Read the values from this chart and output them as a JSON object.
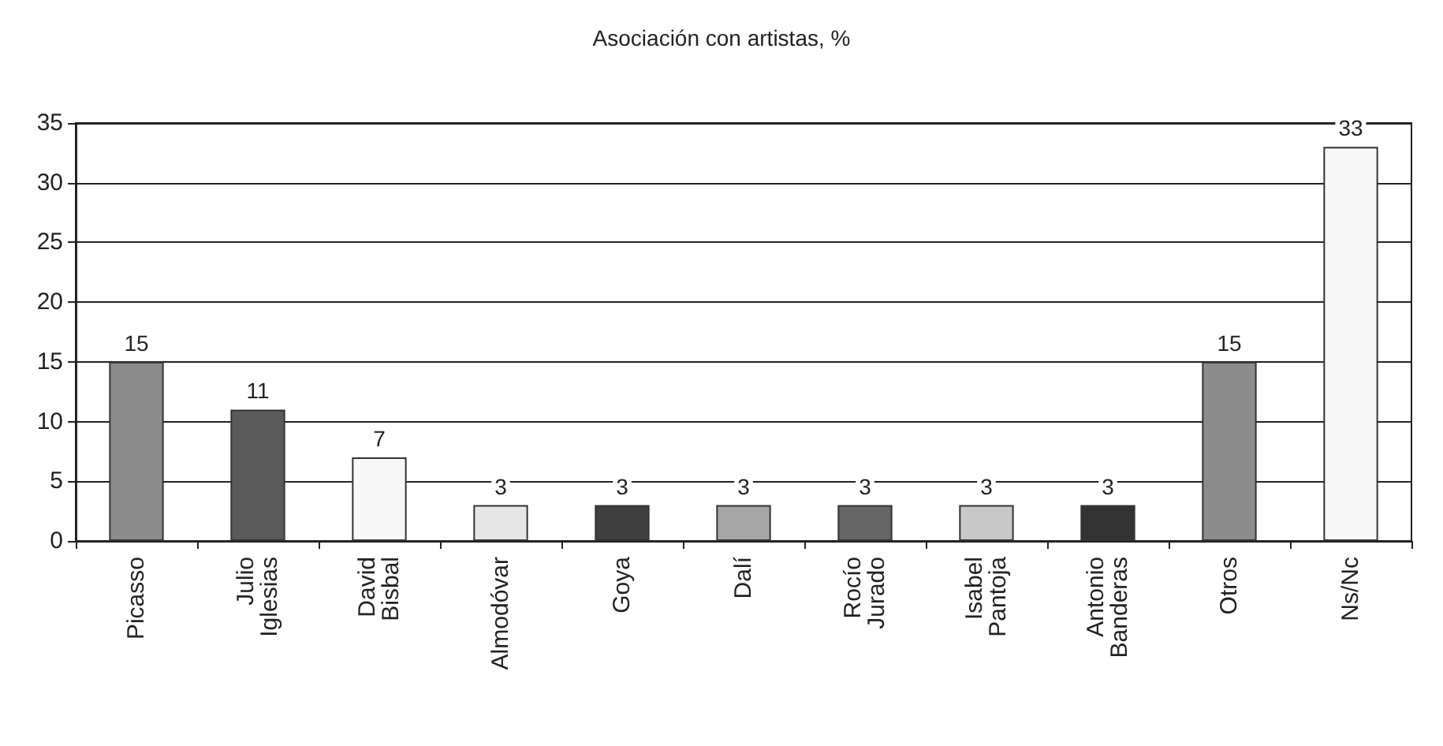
{
  "chart_data": {
    "type": "bar",
    "title": "Asociación con artistas, %",
    "categories": [
      "Picasso",
      "Julio Iglesias",
      "David Bisbal",
      "Almodóvar",
      "Goya",
      "Dalí",
      "Rocío Jurado",
      "Isabel Pantoja",
      "Antonio Banderas",
      "Otros",
      "Ns/Nc"
    ],
    "values": [
      15,
      11,
      7,
      3,
      3,
      3,
      3,
      3,
      3,
      15,
      33
    ],
    "colors": [
      "#8c8c8c",
      "#5a5a5a",
      "#f7f7f7",
      "#e6e6e6",
      "#404040",
      "#a6a6a6",
      "#666666",
      "#c8c8c8",
      "#333333",
      "#8c8c8c",
      "#f7f7f7"
    ],
    "ylim": [
      0,
      35
    ],
    "yticks": [
      0,
      5,
      10,
      15,
      20,
      25,
      30,
      35
    ],
    "grid": "y",
    "data_labels": true
  }
}
